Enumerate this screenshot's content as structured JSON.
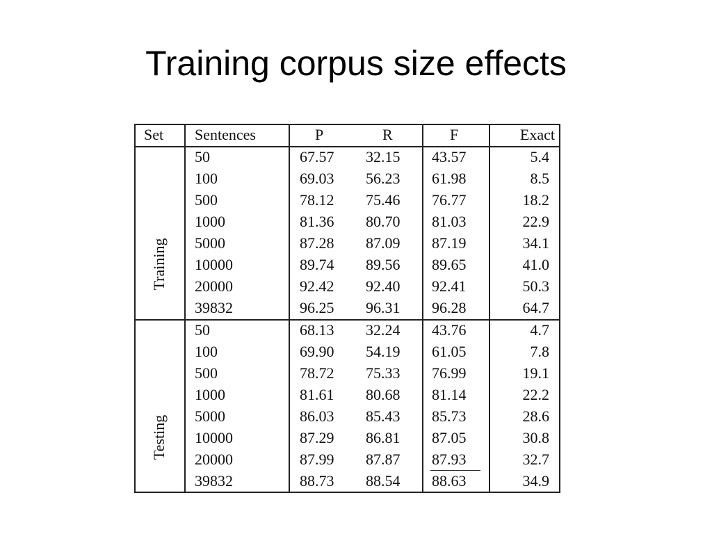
{
  "title": "Training corpus size effects",
  "table": {
    "header": [
      "Set",
      "Sentences",
      "P",
      "R",
      "F",
      "Exact"
    ],
    "groups": [
      {
        "label": "Training",
        "rows": [
          [
            "50",
            "67.57",
            "32.15",
            "43.57",
            "5.4"
          ],
          [
            "100",
            "69.03",
            "56.23",
            "61.98",
            "8.5"
          ],
          [
            "500",
            "78.12",
            "75.46",
            "76.77",
            "18.2"
          ],
          [
            "1000",
            "81.36",
            "80.70",
            "81.03",
            "22.9"
          ],
          [
            "5000",
            "87.28",
            "87.09",
            "87.19",
            "34.1"
          ],
          [
            "10000",
            "89.74",
            "89.56",
            "89.65",
            "41.0"
          ],
          [
            "20000",
            "92.42",
            "92.40",
            "92.41",
            "50.3"
          ],
          [
            "39832",
            "96.25",
            "96.31",
            "96.28",
            "64.7"
          ]
        ]
      },
      {
        "label": "Testing",
        "rows": [
          [
            "50",
            "68.13",
            "32.24",
            "43.76",
            "4.7"
          ],
          [
            "100",
            "69.90",
            "54.19",
            "61.05",
            "7.8"
          ],
          [
            "500",
            "78.72",
            "75.33",
            "76.99",
            "19.1"
          ],
          [
            "1000",
            "81.61",
            "80.68",
            "81.14",
            "22.2"
          ],
          [
            "5000",
            "86.03",
            "85.43",
            "85.73",
            "28.6"
          ],
          [
            "10000",
            "87.29",
            "86.81",
            "87.05",
            "30.8"
          ],
          [
            "20000",
            "87.99",
            "87.87",
            "87.93",
            "32.7"
          ],
          [
            "39832",
            "88.73",
            "88.54",
            "88.63",
            "34.9"
          ]
        ]
      }
    ]
  }
}
